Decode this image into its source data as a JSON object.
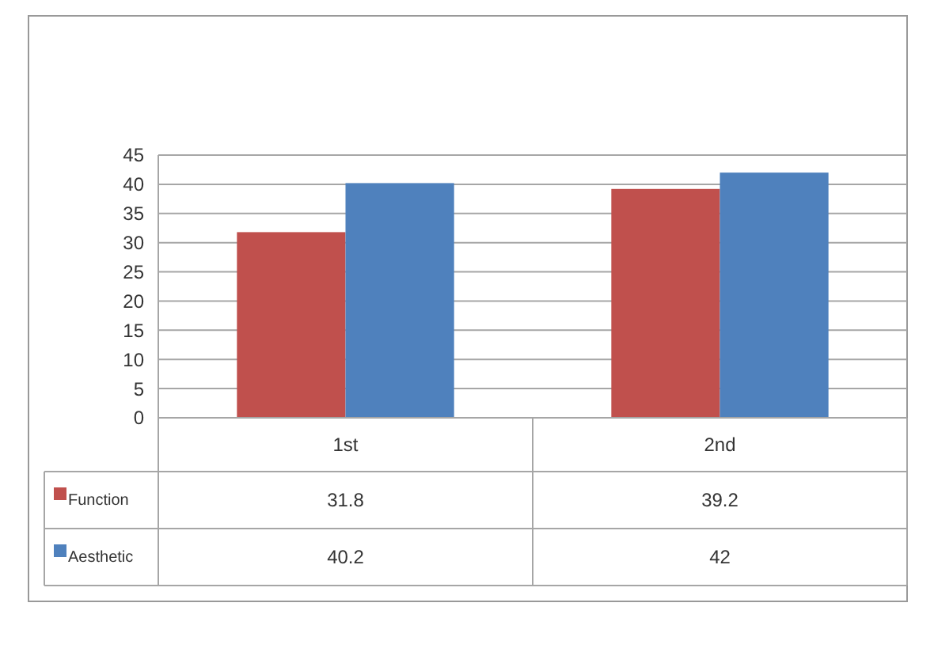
{
  "chart_data": {
    "type": "bar",
    "categories": [
      "1st",
      "2nd"
    ],
    "series": [
      {
        "name": "Function",
        "color": "#c0504d",
        "values": [
          31.8,
          39.2
        ]
      },
      {
        "name": "Aesthetic",
        "color": "#4f81bd",
        "values": [
          40.2,
          42
        ]
      }
    ],
    "ylim": [
      0,
      45
    ],
    "yticks": [
      0,
      5,
      10,
      15,
      20,
      25,
      30,
      35,
      40,
      45
    ],
    "grid": "y",
    "legend": "bottom",
    "data_labels": true
  }
}
